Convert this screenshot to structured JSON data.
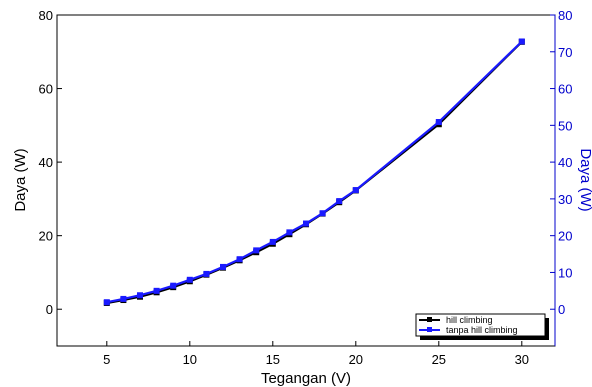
{
  "chart_data": {
    "type": "line",
    "xlabel": "Tegangan (V)",
    "ylabel_left": "Daya (W)",
    "ylabel_right": "Daya (W)",
    "xlim": [
      2,
      32
    ],
    "x_ticks": [
      5,
      10,
      15,
      20,
      25,
      30
    ],
    "ylim_left": [
      -10,
      80
    ],
    "y_ticks_left": [
      0,
      20,
      40,
      60,
      80
    ],
    "ylim_right": [
      -10,
      80
    ],
    "y_ticks_right": [
      0,
      10,
      20,
      30,
      40,
      50,
      60,
      70,
      80
    ],
    "right_axis_color": "#0000cc",
    "legend_position": "bottom-right",
    "series": [
      {
        "name": "hill climbing",
        "color": "#000000",
        "axis": "left",
        "marker": "square",
        "x": [
          5,
          6,
          7,
          8,
          9,
          10,
          11,
          12,
          13,
          14,
          15,
          16,
          17,
          18,
          19,
          20,
          25,
          30
        ],
        "y": [
          1.7,
          2.5,
          3.4,
          4.6,
          6.0,
          7.6,
          9.4,
          11.3,
          13.3,
          15.5,
          17.8,
          20.4,
          23.1,
          26.0,
          29.1,
          32.3,
          50.3,
          72.7
        ]
      },
      {
        "name": "tanpa hill climbing",
        "color": "#1a1aff",
        "axis": "right",
        "marker": "square",
        "x": [
          5,
          6,
          7,
          8,
          9,
          10,
          11,
          12,
          13,
          14,
          15,
          16,
          17,
          18,
          19,
          20,
          25,
          30
        ],
        "y": [
          1.9,
          2.8,
          3.8,
          5.0,
          6.4,
          8.0,
          9.6,
          11.5,
          13.6,
          16.0,
          18.3,
          20.9,
          23.3,
          26.1,
          29.4,
          32.4,
          50.9,
          72.8
        ]
      }
    ]
  }
}
